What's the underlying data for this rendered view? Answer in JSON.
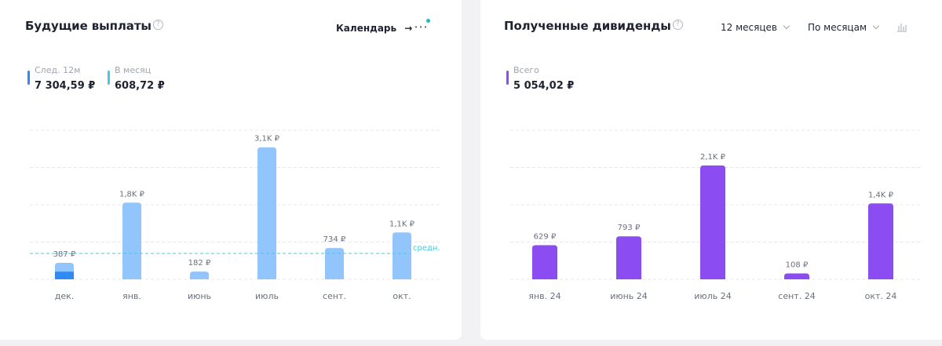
{
  "left_panel": {
    "title": "Будущие выплаты",
    "help_icon": "?",
    "calendar_label": "Календарь",
    "calendar_arrow": "→",
    "more_icon": "⋯",
    "stats": [
      {
        "label": "След. 12м",
        "value": "7 304,59 ₽",
        "color": "#2f8bf3"
      },
      {
        "label": "В месяц",
        "value": "608,72 ₽",
        "color": "#4ac8dc"
      }
    ]
  },
  "right_panel": {
    "title": "Полученные дивиденды",
    "help_icon": "?",
    "period_select": "12 месяцев",
    "group_select": "По месяцам",
    "chart_icon": "bar-chart-icon",
    "stats": [
      {
        "label": "Всего",
        "value": "5 054,02 ₽",
        "color": "#8b4cf2"
      }
    ]
  },
  "chart_data": [
    {
      "type": "bar",
      "categories": [
        "дек.",
        "янв.",
        "июнь",
        "июль",
        "сент.",
        "окт."
      ],
      "values": [
        387,
        1800,
        182,
        3100,
        734,
        1100
      ],
      "paid_part": [
        180,
        0,
        0,
        0,
        0,
        0
      ],
      "labels": [
        "387 ₽",
        "1,8K ₽",
        "182 ₽",
        "3,1K ₽",
        "734 ₽",
        "1,1K ₽"
      ],
      "average": 608.72,
      "average_label": "средн.",
      "ylim": [
        0,
        3500
      ],
      "grid": true,
      "colors": {
        "bar": "#93c5fd",
        "paid": "#2f8bf3",
        "average": "#4ac8dc"
      }
    },
    {
      "type": "bar",
      "categories": [
        "янв. 24",
        "июнь 24",
        "июль 24",
        "сент. 24",
        "окт. 24"
      ],
      "values": [
        629,
        793,
        2100,
        108,
        1400
      ],
      "labels": [
        "629 ₽",
        "793 ₽",
        "2,1K ₽",
        "108 ₽",
        "1,4K ₽"
      ],
      "ylim": [
        0,
        2750
      ],
      "grid": true,
      "colors": {
        "bar": "#8b4cf2"
      }
    }
  ]
}
